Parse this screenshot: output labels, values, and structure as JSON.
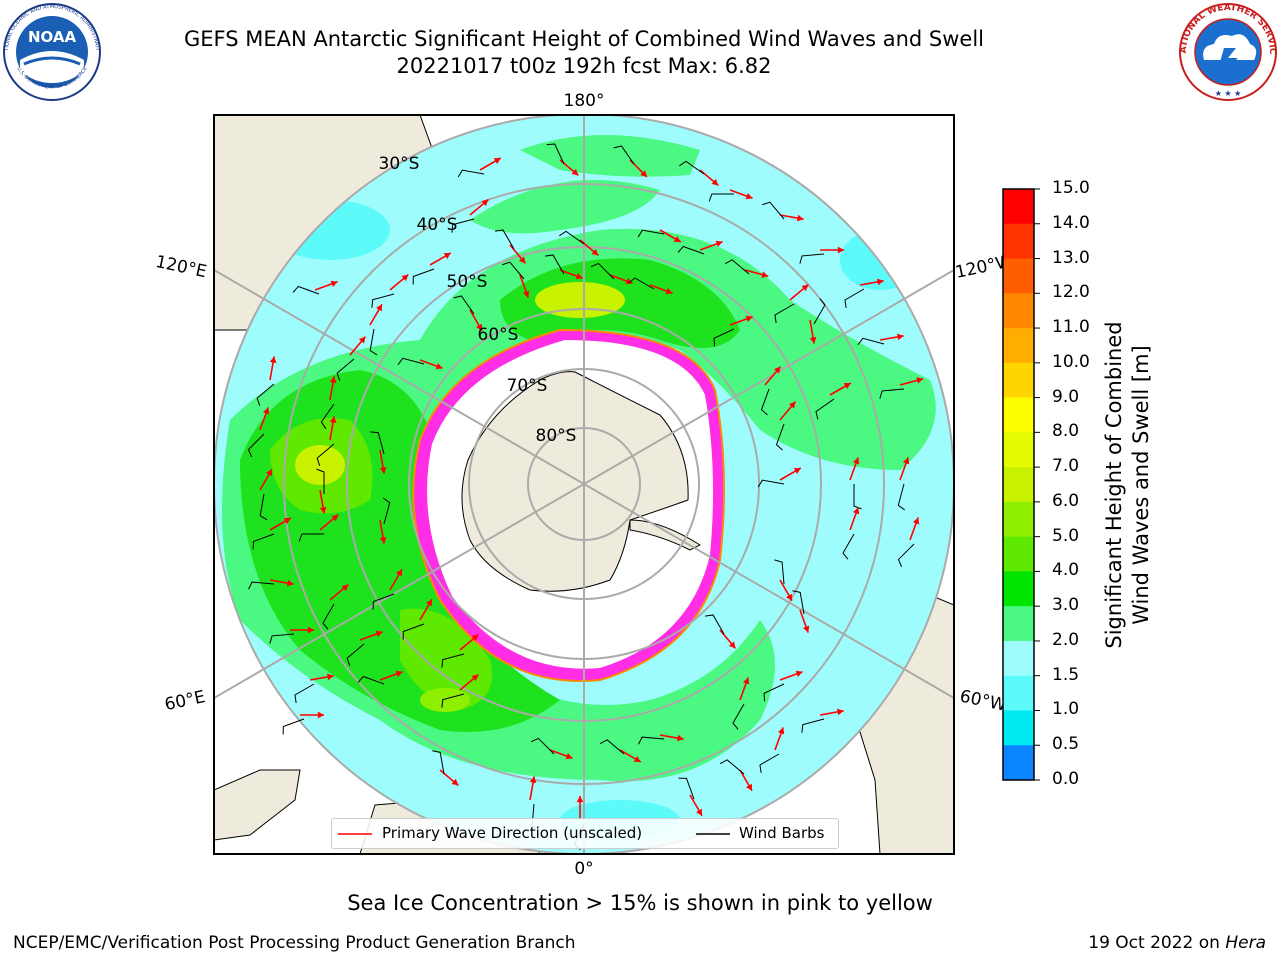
{
  "header": {
    "title_line1": "GEFS MEAN Antarctic Significant Height of Combined Wind Waves and Swell",
    "title_line2": "20221017 t00z 192h fcst   Max: 6.82",
    "noaa_logo_text": "NOAA",
    "noaa_ring_text": "NATIONAL OCEANIC AND ATMOSPHERIC ADMINISTRATION",
    "noaa_bottom_text": "U.S. DEPARTMENT OF COMMERCE",
    "nws_ring_text": "NATIONAL WEATHER SERVICE"
  },
  "map": {
    "projection": "south polar stereographic",
    "longitude_labels": {
      "top": "180°",
      "bottom": "0°",
      "upper_left": "120°E",
      "lower_left": "60°E",
      "upper_right": "120°W",
      "lower_right": "60°W"
    },
    "latitude_labels": [
      "30°S",
      "40°S",
      "50°S",
      "60°S",
      "70°S",
      "80°S"
    ],
    "colors": {
      "ocean_low": "#9ffcfc",
      "ocean_mid": "#4bf882",
      "ocean_high": "#1ee21e",
      "ocean_peak": "#c8f200",
      "land": "#efebdc",
      "sea_ice": "#ff2ee6",
      "wave_arrows": "#ff0000",
      "wind_barbs": "#000000"
    },
    "legend": {
      "primary_wave": "Primary Wave Direction (unscaled)",
      "wind_barbs": "Wind Barbs"
    }
  },
  "colorbar": {
    "title_line1": "Significant Height of Combined",
    "title_line2": "Wind Waves and Swell [m]",
    "ticks": [
      "15.0",
      "14.0",
      "13.0",
      "12.0",
      "11.0",
      "10.0",
      "9.0",
      "8.0",
      "7.0",
      "6.0",
      "5.0",
      "4.0",
      "3.0",
      "2.0",
      "1.5",
      "1.0",
      "0.5",
      "0.0"
    ],
    "colors_top_to_bottom": [
      "#ff0000",
      "#ff3300",
      "#ff5e00",
      "#ff8800",
      "#ffad00",
      "#ffd500",
      "#fdfd00",
      "#e4fb00",
      "#c8f200",
      "#8ef000",
      "#5fe800",
      "#00e600",
      "#4bf882",
      "#9ffcfc",
      "#5dfafa",
      "#00eaf2",
      "#0a84ff",
      "#0000ff"
    ]
  },
  "notes": {
    "sea_ice": "Sea Ice Concentration > 15% is shown in pink to yellow"
  },
  "footer": {
    "left": "NCEP/EMC/Verification Post Processing Product Generation Branch",
    "right_date": "19 Oct 2022 on",
    "right_host": "Hera"
  }
}
